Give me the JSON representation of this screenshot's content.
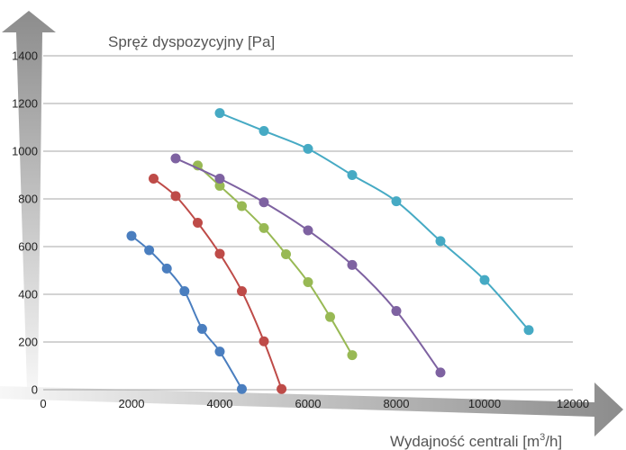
{
  "chart_data": {
    "type": "line",
    "ylabel": "Spręż dyspozycyjny [Pa]",
    "xlabel_main": "Wydajność centrali [m",
    "xlabel_sup": "3",
    "xlabel_end": "/h]",
    "xlim": [
      0,
      12000
    ],
    "ylim": [
      0,
      1400
    ],
    "x_ticks": [
      "0",
      "2000",
      "4000",
      "6000",
      "8000",
      "10000",
      "12000"
    ],
    "y_ticks": [
      "0",
      "200",
      "400",
      "600",
      "800",
      "1000",
      "1200",
      "1400"
    ],
    "grid": true,
    "legend": "none",
    "series": [
      {
        "color": "#4a7ebf",
        "points": [
          [
            2000,
            645
          ],
          [
            2400,
            585
          ],
          [
            2800,
            508
          ],
          [
            3200,
            413
          ],
          [
            3600,
            255
          ],
          [
            4000,
            160
          ],
          [
            4500,
            3
          ]
        ]
      },
      {
        "color": "#be4b48",
        "points": [
          [
            2500,
            885
          ],
          [
            3000,
            812
          ],
          [
            3500,
            700
          ],
          [
            4000,
            570
          ],
          [
            4500,
            413
          ],
          [
            5000,
            203
          ],
          [
            5400,
            3
          ]
        ]
      },
      {
        "color": "#98b954",
        "points": [
          [
            3500,
            940
          ],
          [
            4000,
            855
          ],
          [
            4500,
            770
          ],
          [
            5000,
            678
          ],
          [
            5500,
            568
          ],
          [
            6000,
            451
          ],
          [
            6500,
            305
          ],
          [
            7000,
            145
          ]
        ]
      },
      {
        "color": "#7e62a1",
        "points": [
          [
            3000,
            970
          ],
          [
            4000,
            885
          ],
          [
            5000,
            786
          ],
          [
            6000,
            668
          ],
          [
            7000,
            523
          ],
          [
            8000,
            330
          ],
          [
            9000,
            72
          ]
        ]
      },
      {
        "color": "#46aac4",
        "points": [
          [
            4000,
            1160
          ],
          [
            5000,
            1085
          ],
          [
            6000,
            1010
          ],
          [
            7000,
            900
          ],
          [
            8000,
            790
          ],
          [
            9000,
            623
          ],
          [
            10000,
            460
          ],
          [
            11000,
            250
          ]
        ]
      }
    ]
  }
}
